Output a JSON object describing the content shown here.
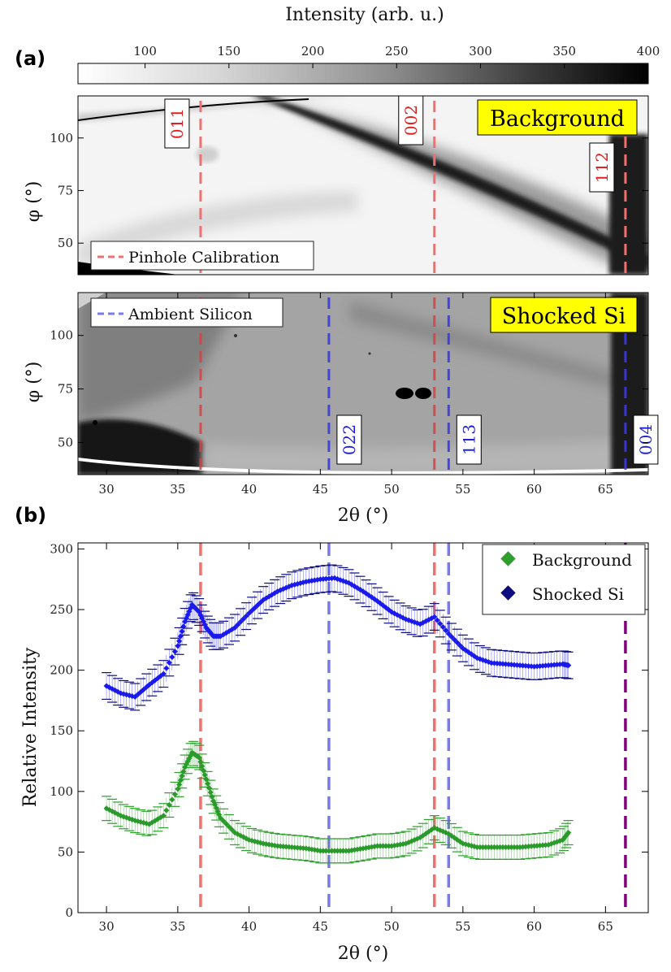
{
  "panel_labels": {
    "a": "(a)",
    "b": "(b)"
  },
  "colorbar": {
    "title": "Intensity (arb. u.)",
    "range": [
      60,
      400
    ],
    "ticks": [
      "100",
      "150",
      "200",
      "250",
      "300",
      "350",
      "400"
    ],
    "tick_values": [
      100,
      150,
      200,
      250,
      300,
      350,
      400
    ]
  },
  "images": {
    "xlim": [
      28,
      68
    ],
    "ylim": [
      35,
      120
    ],
    "xlabel": "2θ (°)",
    "ylabel": "φ (°)",
    "x_ticks": [
      30,
      35,
      40,
      45,
      50,
      55,
      60,
      65
    ],
    "y_ticks": [
      50,
      75,
      100
    ],
    "top": {
      "title": "Background",
      "legend": "Pinhole Calibration",
      "peaks": [
        {
          "label": "011",
          "two_theta": 36.6
        },
        {
          "label": "002",
          "two_theta": 53.0
        },
        {
          "label": "112",
          "two_theta": 66.4
        }
      ]
    },
    "bottom": {
      "title": "Shocked Si",
      "legend": "Ambient Silicon",
      "calibration_lines": [
        36.6,
        53.0
      ],
      "peaks": [
        {
          "label": "022",
          "two_theta": 45.6
        },
        {
          "label": "113",
          "two_theta": 54.0
        },
        {
          "label": "004",
          "two_theta": 66.4
        }
      ]
    }
  },
  "chart_data": {
    "type": "line",
    "title": "",
    "xlabel": "2θ (°)",
    "ylabel": "Relative Intensity",
    "xlim": [
      28,
      68
    ],
    "ylim": [
      0,
      305
    ],
    "x_ticks": [
      30,
      35,
      40,
      45,
      50,
      55,
      60,
      65
    ],
    "y_ticks": [
      0,
      50,
      100,
      150,
      200,
      250,
      300
    ],
    "grid": false,
    "legend_position": "top-right",
    "vertical_lines": [
      {
        "x": 36.6,
        "color": "#f07070"
      },
      {
        "x": 53.0,
        "color": "#f07070"
      },
      {
        "x": 45.6,
        "color": "#7a7aee"
      },
      {
        "x": 54.0,
        "color": "#7a7aee"
      },
      {
        "x": 66.4,
        "color": "#800080"
      }
    ],
    "series": [
      {
        "name": "Background",
        "color": "#2a9a2a",
        "marker_color": "#2e9e2e",
        "error": 10,
        "x": [
          30,
          31,
          32,
          33,
          34,
          35,
          35.5,
          36,
          36.5,
          37,
          37.5,
          38,
          39,
          40,
          41,
          42,
          43,
          44,
          45,
          46,
          47,
          48,
          49,
          50,
          51,
          52,
          53,
          54,
          55,
          56,
          57,
          58,
          59,
          60,
          61,
          62,
          62.4
        ],
        "values": [
          86,
          80,
          76,
          73,
          80,
          102,
          120,
          132,
          128,
          110,
          92,
          78,
          66,
          60,
          57,
          55,
          54,
          53,
          51,
          51,
          51,
          53,
          55,
          55,
          57,
          62,
          70,
          65,
          57,
          54,
          54,
          54,
          54,
          55,
          56,
          60,
          66
        ]
      },
      {
        "name": "Shocked Si",
        "color": "#1a1aee",
        "marker_color": "#0d0d80",
        "error": 11,
        "x": [
          30,
          31,
          32,
          33,
          34,
          35,
          35.5,
          36,
          36.5,
          37,
          37.5,
          38,
          39,
          40,
          41,
          42,
          43,
          44,
          45,
          46,
          47,
          48,
          49,
          50,
          51,
          52,
          53,
          54,
          55,
          56,
          57,
          58,
          59,
          60,
          61,
          62,
          62.4
        ],
        "values": [
          187,
          181,
          178,
          188,
          197,
          220,
          240,
          254,
          248,
          235,
          228,
          228,
          235,
          247,
          258,
          265,
          270,
          273,
          275,
          276,
          272,
          265,
          257,
          248,
          242,
          238,
          244,
          230,
          218,
          210,
          206,
          205,
          204,
          203,
          204,
          205,
          204
        ]
      }
    ]
  }
}
